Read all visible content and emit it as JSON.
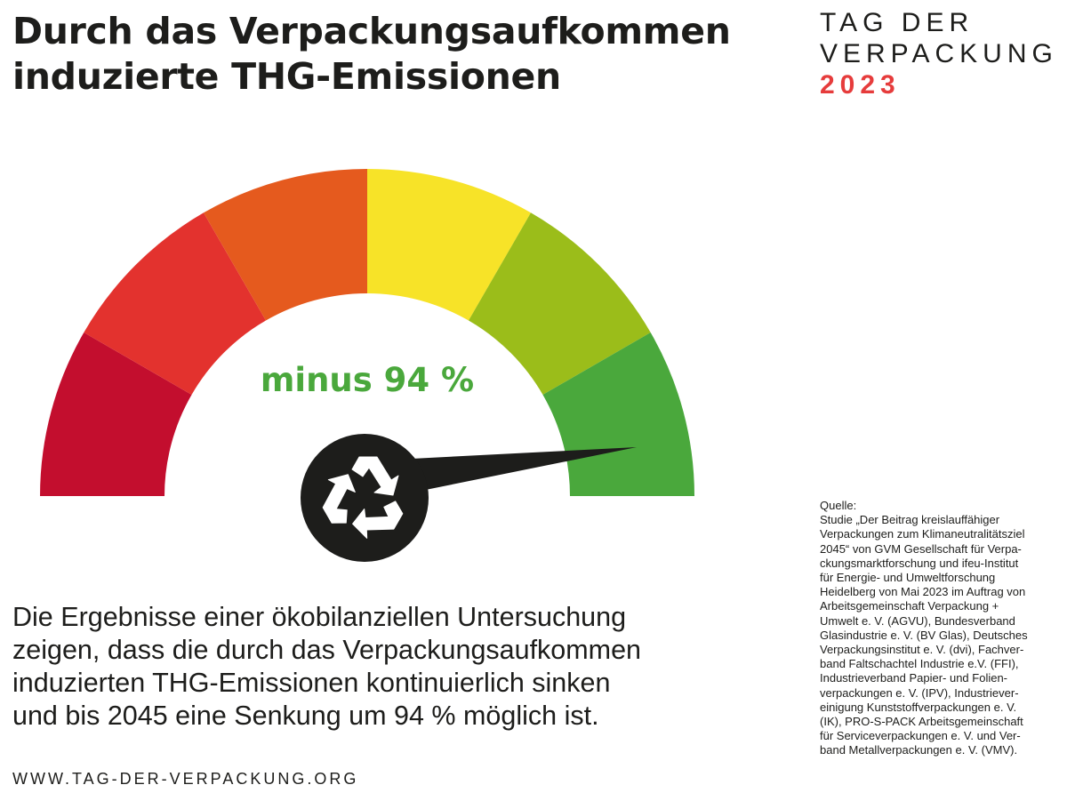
{
  "headline": {
    "line1": "Durch das Verpackungsaufkommen",
    "line2": "induzierte THG-Emissionen"
  },
  "brand": {
    "line1": "TAG DER",
    "line2": "VERPACKUNG",
    "year": "2023",
    "year_color": "#e63c3c"
  },
  "gauge": {
    "value_label": "minus 94 %",
    "value_color": "#4aa83c",
    "reduction_percent": 94,
    "segment_colors": [
      "#c30e2e",
      "#e3322e",
      "#e55a1e",
      "#f7e328",
      "#9bbd1a",
      "#4aa83c"
    ],
    "hub_icon": "recycle-icon"
  },
  "body": {
    "lines": [
      "Die Ergebnisse einer ökobilanziellen Untersuchung",
      "zeigen, dass die durch das Verpackungsaufkommen",
      "induzierten THG-Emissionen kontinuierlich sinken",
      "und bis 2045 eine Senkung um 94 % möglich ist."
    ]
  },
  "url": "WWW.TAG-DER-VERPACKUNG.ORG",
  "source": {
    "label": "Quelle:",
    "lines": [
      "Studie „Der Beitrag kreislauffähiger",
      "Verpackungen zum Klimaneutralitätsziel",
      "2045“ von GVM Gesellschaft für Verpa-",
      "ckungsmarktforschung und ifeu-Institut",
      "für Energie- und Umweltforschung",
      "Heidelberg von Mai 2023 im Auftrag von",
      "Arbeitsgemeinschaft Verpackung +",
      "Umwelt e. V. (AGVU), Bundesverband",
      "Glasindustrie e. V. (BV Glas), Deutsches",
      "Verpackungsinstitut e. V. (dvi), Fachver-",
      "band Faltschachtel Industrie e.V. (FFI),",
      "Industrieverband Papier- und Folien-",
      "verpackungen e. V. (IPV), Industriever-",
      "einigung Kunststoffverpackungen e. V.",
      "(IK), PRO-S-PACK Arbeitsgemeinschaft",
      "für Serviceverpackungen e. V. und Ver-",
      "band Metallverpackungen e. V. (VMV)."
    ]
  }
}
